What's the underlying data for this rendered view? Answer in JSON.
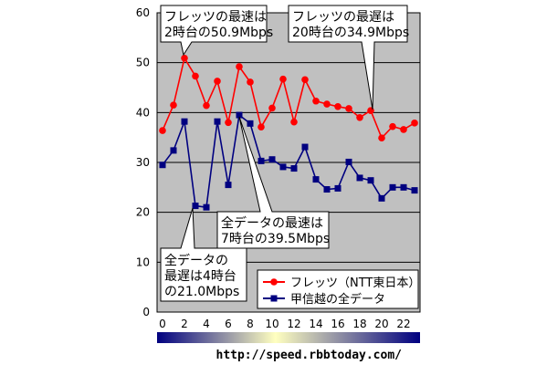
{
  "chart_data": {
    "type": "line",
    "x": [
      0,
      1,
      2,
      3,
      4,
      5,
      6,
      7,
      8,
      9,
      10,
      11,
      12,
      13,
      14,
      15,
      16,
      17,
      18,
      19,
      20,
      21,
      22,
      23
    ],
    "xticks": [
      "0",
      "2",
      "4",
      "6",
      "8",
      "10",
      "12",
      "14",
      "16",
      "18",
      "20",
      "22"
    ],
    "yticks": [
      "0",
      "10",
      "20",
      "30",
      "40",
      "50",
      "60"
    ],
    "ylim": [
      0,
      60
    ],
    "grid": true,
    "legend_position": "bottom-right",
    "series": [
      {
        "name": "フレッツ（NTT東日本）",
        "color": "#ff0000",
        "marker": "circle",
        "values": [
          36.4,
          41.5,
          50.9,
          47.3,
          41.4,
          46.3,
          38.0,
          49.2,
          46.1,
          37.1,
          40.9,
          46.7,
          38.1,
          46.6,
          42.3,
          41.7,
          41.2,
          40.8,
          39.0,
          40.4,
          34.9,
          37.2,
          36.6,
          37.9
        ]
      },
      {
        "name": "甲信越の全データ",
        "color": "#000080",
        "marker": "square",
        "values": [
          29.5,
          32.4,
          38.2,
          21.3,
          21.0,
          38.2,
          25.5,
          39.5,
          37.8,
          30.3,
          30.6,
          29.1,
          28.8,
          33.1,
          26.6,
          24.6,
          24.8,
          30.1,
          26.9,
          26.4,
          22.8,
          25.0,
          25.0,
          24.4
        ]
      }
    ],
    "annotations": [
      {
        "line1": "フレッツの最速は",
        "line2": "2時台の50.9Mbps"
      },
      {
        "line1": "フレッツの最遅は",
        "line2": "20時台の34.9Mbps"
      },
      {
        "line1": "全データの最速は",
        "line2": "7時台の39.5Mbps"
      },
      {
        "line1": "全データの",
        "line2": "最遅は4時台",
        "line3": "の21.0Mbps"
      }
    ]
  },
  "footer": {
    "url": "http://speed.rbbtoday.com/",
    "colors": [
      "#000080",
      "#ffffc0"
    ]
  }
}
